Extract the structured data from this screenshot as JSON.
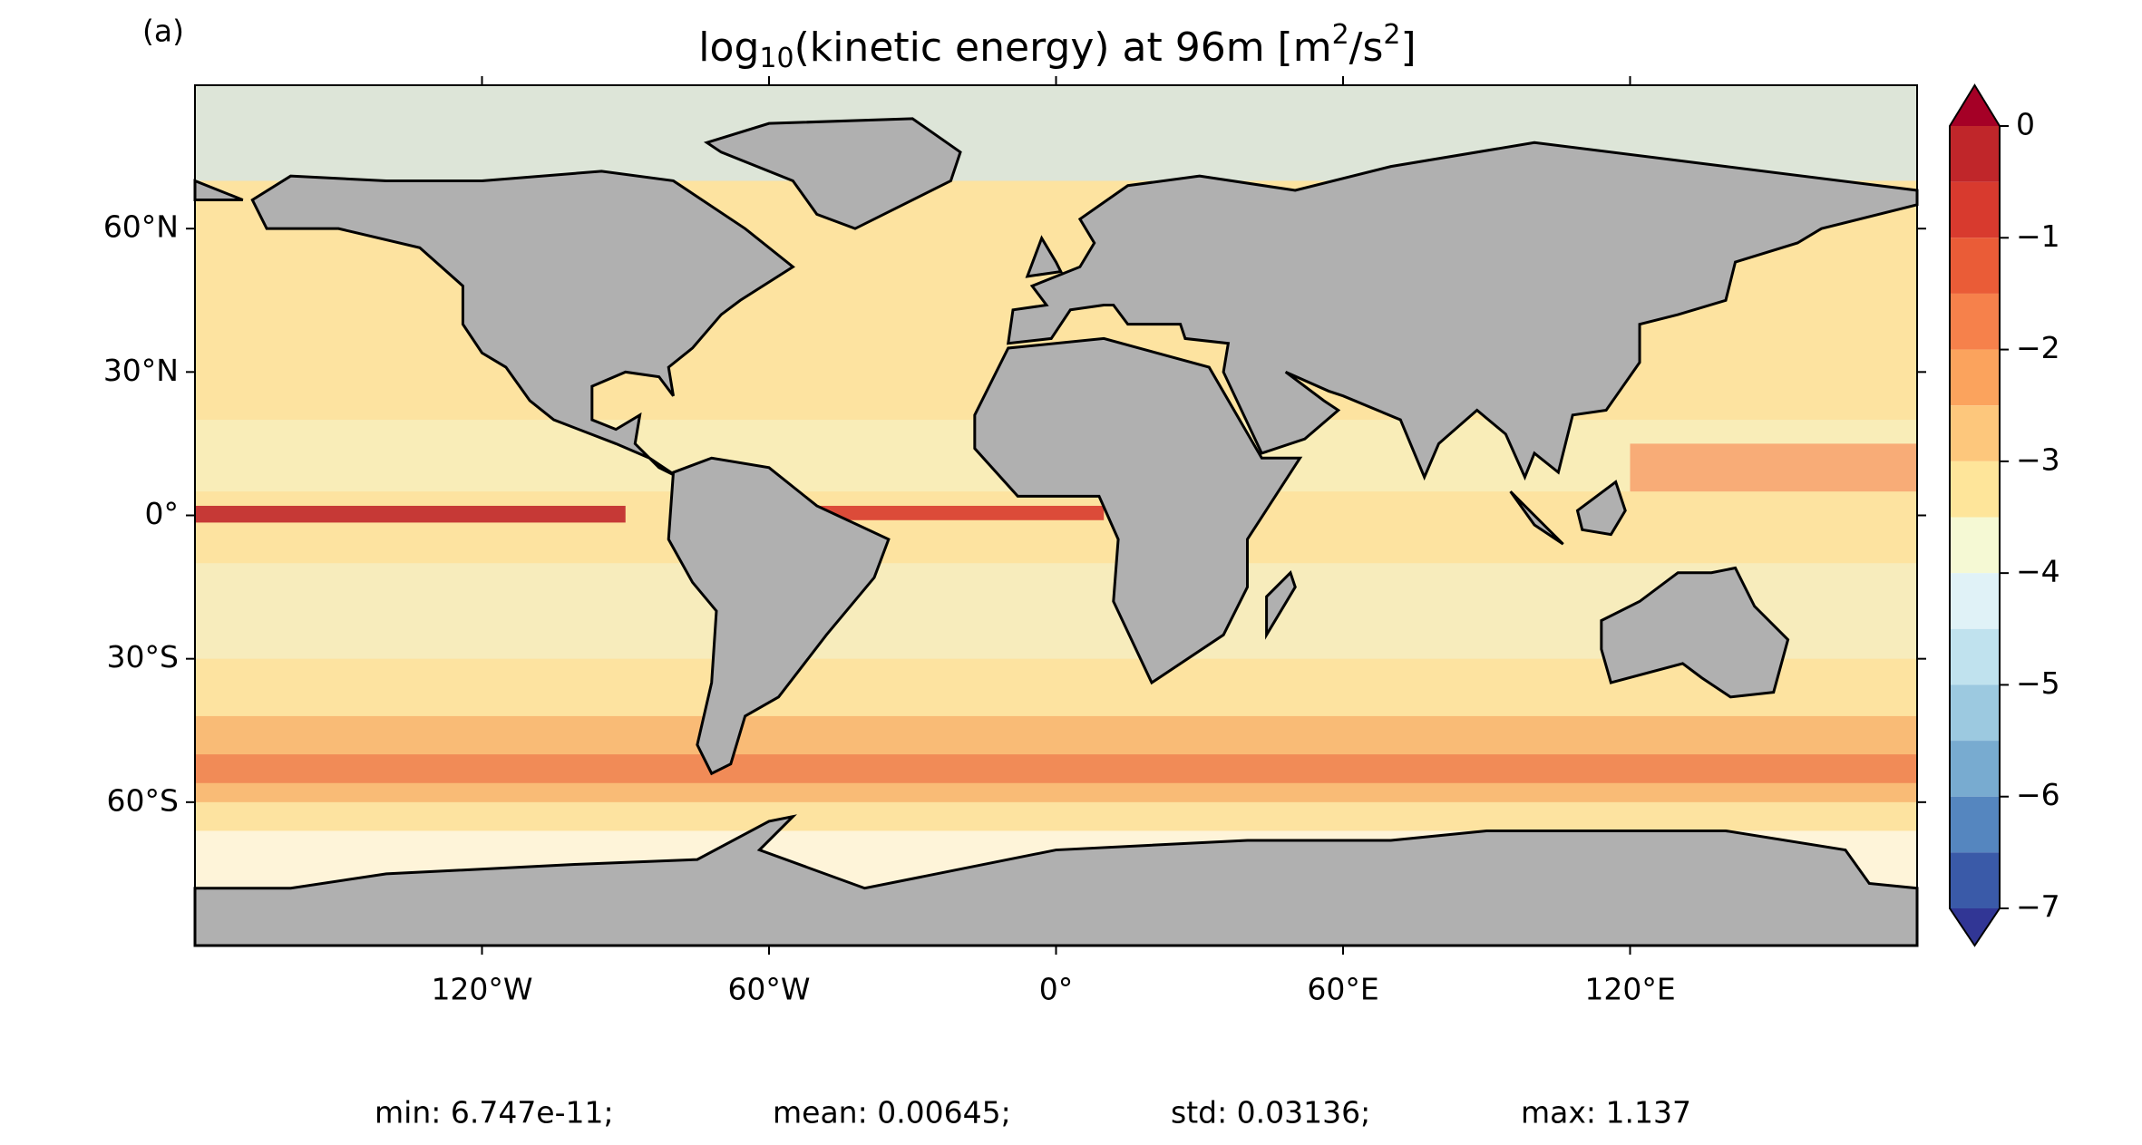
{
  "chart_data": {
    "type": "map",
    "panel_label": "(a)",
    "title_parts": [
      "log",
      "10",
      "(kinetic energy) at 96m [m",
      "2",
      "/s",
      "2",
      "]"
    ],
    "xlim": [
      -180,
      180
    ],
    "ylim": [
      -90,
      90
    ],
    "xticks": [
      {
        "value": -120,
        "label": "120°W"
      },
      {
        "value": -60,
        "label": "60°W"
      },
      {
        "value": 0,
        "label": "0°"
      },
      {
        "value": 60,
        "label": "60°E"
      },
      {
        "value": 120,
        "label": "120°E"
      }
    ],
    "yticks": [
      {
        "value": 60,
        "label": "60°N"
      },
      {
        "value": 30,
        "label": "30°N"
      },
      {
        "value": 0,
        "label": "0°"
      },
      {
        "value": -30,
        "label": "30°S"
      },
      {
        "value": -60,
        "label": "60°S"
      }
    ],
    "colorbar": {
      "levels": [
        0,
        -0.5,
        -1,
        -1.5,
        -2,
        -2.5,
        -3,
        -3.5,
        -4,
        -4.5,
        -5,
        -5.5,
        -6,
        -6.5,
        -7
      ],
      "colors": [
        "#c0262a",
        "#d83a2e",
        "#ea5c37",
        "#f6814b",
        "#fba35d",
        "#fdc77c",
        "#fee59a",
        "#f5f9d4",
        "#e0f2f7",
        "#c0e2ee",
        "#9cc9e0",
        "#78abd0",
        "#5586bf",
        "#3a5aa8"
      ],
      "extend_colors": [
        "#a50026",
        "#313695"
      ],
      "ticks": [
        0,
        {
          "value": -1,
          "label": "−1"
        },
        {
          "value": -2,
          "label": "−2"
        },
        {
          "value": -3,
          "label": "−3"
        },
        {
          "value": -4,
          "label": "−4"
        },
        {
          "value": -5,
          "label": "−5"
        },
        {
          "value": -6,
          "label": "−6"
        },
        {
          "value": -7,
          "label": "−7"
        }
      ]
    },
    "stats": [
      "min: 6.747e-11;",
      "mean: 0.00645;",
      "std: 0.03136;",
      "max: 1.137"
    ]
  }
}
